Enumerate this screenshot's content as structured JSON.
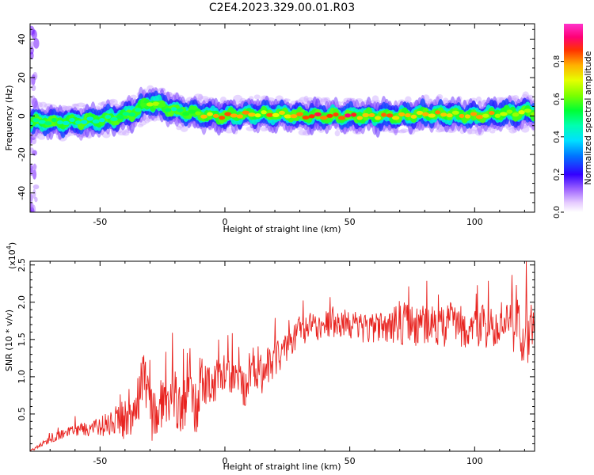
{
  "title": "C2E4.2023.329.00.01.R03",
  "colors": {
    "snr_line": "#e8231f",
    "axis": "#000000"
  },
  "chart_data": [
    {
      "type": "heatmap",
      "xlabel": "Height of straight line (km)",
      "ylabel": "Frequency (Hz)",
      "xlim": [
        -78,
        124
      ],
      "ylim": [
        -50,
        48
      ],
      "x_ticks": [
        -50,
        0,
        50,
        100
      ],
      "x_tick_labels": [
        "-50",
        "0",
        "50",
        "100"
      ],
      "y_ticks": [
        -40,
        -20,
        0,
        20,
        40
      ],
      "y_tick_labels": [
        "-40",
        "-20",
        "0",
        "20",
        "40"
      ],
      "colorbar": {
        "label": "Normalized spectral amplitude",
        "range": [
          0,
          1
        ],
        "ticks": [
          0.0,
          0.2,
          0.4,
          0.6,
          0.8
        ],
        "tick_labels": [
          "0.0",
          "0.2",
          "0.4",
          "0.6",
          "0.8"
        ]
      },
      "ridge": {
        "x": [
          -78,
          -70,
          -60,
          -50,
          -40,
          -35,
          -30,
          -25,
          -20,
          -15,
          -10,
          -5,
          0,
          10,
          20,
          30,
          40,
          50,
          60,
          70,
          80,
          90,
          100,
          110,
          120,
          124
        ],
        "frequency": [
          -3,
          -3,
          -3,
          -2,
          0,
          3,
          7,
          5,
          3,
          2,
          1,
          0,
          0,
          1,
          1,
          0,
          0,
          0,
          0,
          0,
          1,
          1,
          0,
          1,
          2,
          2
        ],
        "amplitude": [
          0.5,
          0.5,
          0.45,
          0.45,
          0.5,
          0.55,
          0.65,
          0.6,
          0.5,
          0.55,
          0.75,
          0.8,
          0.85,
          0.8,
          0.8,
          0.85,
          0.95,
          0.9,
          0.85,
          0.85,
          0.8,
          0.75,
          0.8,
          0.75,
          0.7,
          0.7
        ]
      }
    },
    {
      "type": "line",
      "xlabel": "Height of straight line (km)",
      "ylabel": "SNR (10 * v/v)",
      "y_multiplier_label": "(x10",
      "y_multiplier_exp": "4",
      "y_multiplier_close": ")",
      "xlim": [
        -78,
        124
      ],
      "ylim": [
        0,
        2.55
      ],
      "x_ticks": [
        -50,
        0,
        50,
        100
      ],
      "x_tick_labels": [
        "-50",
        "0",
        "50",
        "100"
      ],
      "y_ticks": [
        0.5,
        1.0,
        1.5,
        2.0,
        2.5
      ],
      "y_tick_labels": [
        "0.5",
        "1.0",
        "1.5",
        "2.0",
        "2.5"
      ],
      "series": [
        {
          "x": [
            -78,
            -72,
            -66,
            -60,
            -55,
            -50,
            -45,
            -40,
            -35,
            -32,
            -30,
            -27,
            -25,
            -22,
            -20,
            -17,
            -15,
            -13,
            -10,
            -7,
            -5,
            -2,
            0,
            3,
            5,
            8,
            10,
            13,
            15,
            18,
            20,
            23,
            25,
            28,
            30,
            35,
            40,
            45,
            50,
            55,
            60,
            65,
            70,
            75,
            80,
            85,
            90,
            95,
            100,
            105,
            110,
            115,
            120,
            124
          ],
          "values": [
            0.0,
            0.12,
            0.22,
            0.28,
            0.3,
            0.32,
            0.4,
            0.42,
            0.65,
            1.05,
            0.5,
            0.45,
            0.75,
            0.6,
            0.7,
            0.55,
            0.95,
            0.45,
            0.85,
            0.95,
            0.9,
            1.0,
            1.05,
            0.9,
            1.05,
            0.85,
            1.1,
            1.15,
            1.0,
            1.2,
            1.3,
            1.35,
            1.45,
            1.55,
            1.6,
            1.68,
            1.7,
            1.7,
            1.72,
            1.65,
            1.65,
            1.7,
            1.72,
            1.68,
            1.7,
            1.62,
            1.72,
            1.68,
            1.7,
            1.65,
            1.72,
            1.68,
            1.6,
            1.55
          ],
          "spread": [
            0.01,
            0.04,
            0.06,
            0.08,
            0.1,
            0.14,
            0.18,
            0.28,
            0.35,
            0.45,
            0.4,
            0.3,
            0.4,
            0.35,
            0.4,
            0.38,
            0.5,
            0.4,
            0.45,
            0.3,
            0.3,
            0.25,
            0.25,
            0.25,
            0.28,
            0.3,
            0.3,
            0.3,
            0.3,
            0.3,
            0.28,
            0.25,
            0.25,
            0.22,
            0.22,
            0.2,
            0.2,
            0.2,
            0.2,
            0.2,
            0.22,
            0.25,
            0.3,
            0.28,
            0.28,
            0.28,
            0.3,
            0.3,
            0.3,
            0.3,
            0.32,
            0.35,
            0.45,
            0.5
          ]
        }
      ]
    }
  ]
}
